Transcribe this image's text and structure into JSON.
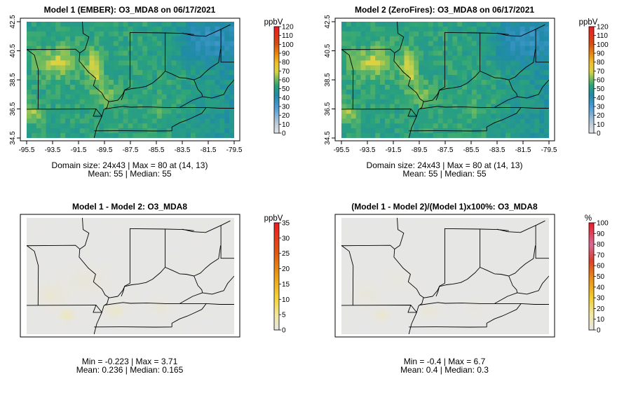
{
  "colors": {
    "background": "#ffffff",
    "no_difference_fill": "#e6e6e6",
    "boundary_line": "#000000"
  },
  "chart_data": [
    {
      "type": "heatmap",
      "title": "Model 1 (EMBER): O3_MDA8 on 06/17/2021",
      "xlim": [
        -95.5,
        -79.5
      ],
      "ylim": [
        34.5,
        42.5
      ],
      "xticks": [
        "-95.5",
        "-93.5",
        "-91.5",
        "-89.5",
        "-87.5",
        "-85.5",
        "-83.5",
        "-81.5",
        "-79.5"
      ],
      "yticks": [
        "34.5",
        "36.5",
        "38.5",
        "40.5",
        "42.5"
      ],
      "legend_unit": "ppbV",
      "legend_ticks": [
        "0",
        "10",
        "20",
        "30",
        "40",
        "50",
        "60",
        "70",
        "80",
        "90",
        "100",
        "110",
        "120"
      ],
      "legend_range": [
        0,
        120
      ],
      "colormap": "gray-blue-green-yellow-orange-red",
      "caption_line1": "Domain size: 24x43 | Max = 80 at (14, 13)",
      "caption_line2": "Mean: 55 |  Median: 55",
      "grid_size": "24x43",
      "max": 80,
      "mean": 55,
      "median": 55
    },
    {
      "type": "heatmap",
      "title": "Model 2 (ZeroFires): O3_MDA8 on 06/17/2021",
      "xlim": [
        -95.5,
        -79.5
      ],
      "ylim": [
        34.5,
        42.5
      ],
      "xticks": [
        "-95.5",
        "-93.5",
        "-91.5",
        "-89.5",
        "-87.5",
        "-85.5",
        "-83.5",
        "-81.5",
        "-79.5"
      ],
      "yticks": [
        "34.5",
        "36.5",
        "38.5",
        "40.5",
        "42.5"
      ],
      "legend_unit": "ppbV",
      "legend_ticks": [
        "0",
        "10",
        "20",
        "30",
        "40",
        "50",
        "60",
        "70",
        "80",
        "90",
        "100",
        "110",
        "120"
      ],
      "legend_range": [
        0,
        120
      ],
      "colormap": "gray-blue-green-yellow-orange-red",
      "caption_line1": "Domain size: 24x43 | Max = 80 at (14, 13)",
      "caption_line2": "Mean: 55 |  Median: 55",
      "grid_size": "24x43",
      "max": 80,
      "mean": 55,
      "median": 55
    },
    {
      "type": "heatmap",
      "title": "Model 1 - Model 2: O3_MDA8",
      "xlim": [
        -95.5,
        -79.5
      ],
      "ylim": [
        34.5,
        42.5
      ],
      "legend_unit": "ppbV",
      "legend_ticks": [
        "0",
        "5",
        "10",
        "15",
        "20",
        "25",
        "30",
        "35"
      ],
      "legend_range": [
        0,
        35
      ],
      "colormap": "gray-yellow-orange-red",
      "caption_line1": "Min = -0.223 | Max = 3.71",
      "caption_line2": "Mean: 0.236 |  Median: 0.165",
      "min": -0.223,
      "max": 3.71,
      "mean": 0.236,
      "median": 0.165
    },
    {
      "type": "heatmap",
      "title": "(Model 1 - Model 2)/(Model 1)x100%: O3_MDA8",
      "xlim": [
        -95.5,
        -79.5
      ],
      "ylim": [
        34.5,
        42.5
      ],
      "legend_unit": "%",
      "legend_ticks": [
        "0",
        "10",
        "20",
        "30",
        "40",
        "50",
        "60",
        "70",
        "80",
        "90",
        "100"
      ],
      "legend_range": [
        0,
        100
      ],
      "colormap": "gray-yellow-orange-red-pink",
      "caption_line1": "Min = -0.4 | Max = 6.7",
      "caption_line2": "Mean: 0.4 |  Median: 0.3",
      "min": -0.4,
      "max": 6.7,
      "mean": 0.4,
      "median": 0.3
    }
  ]
}
